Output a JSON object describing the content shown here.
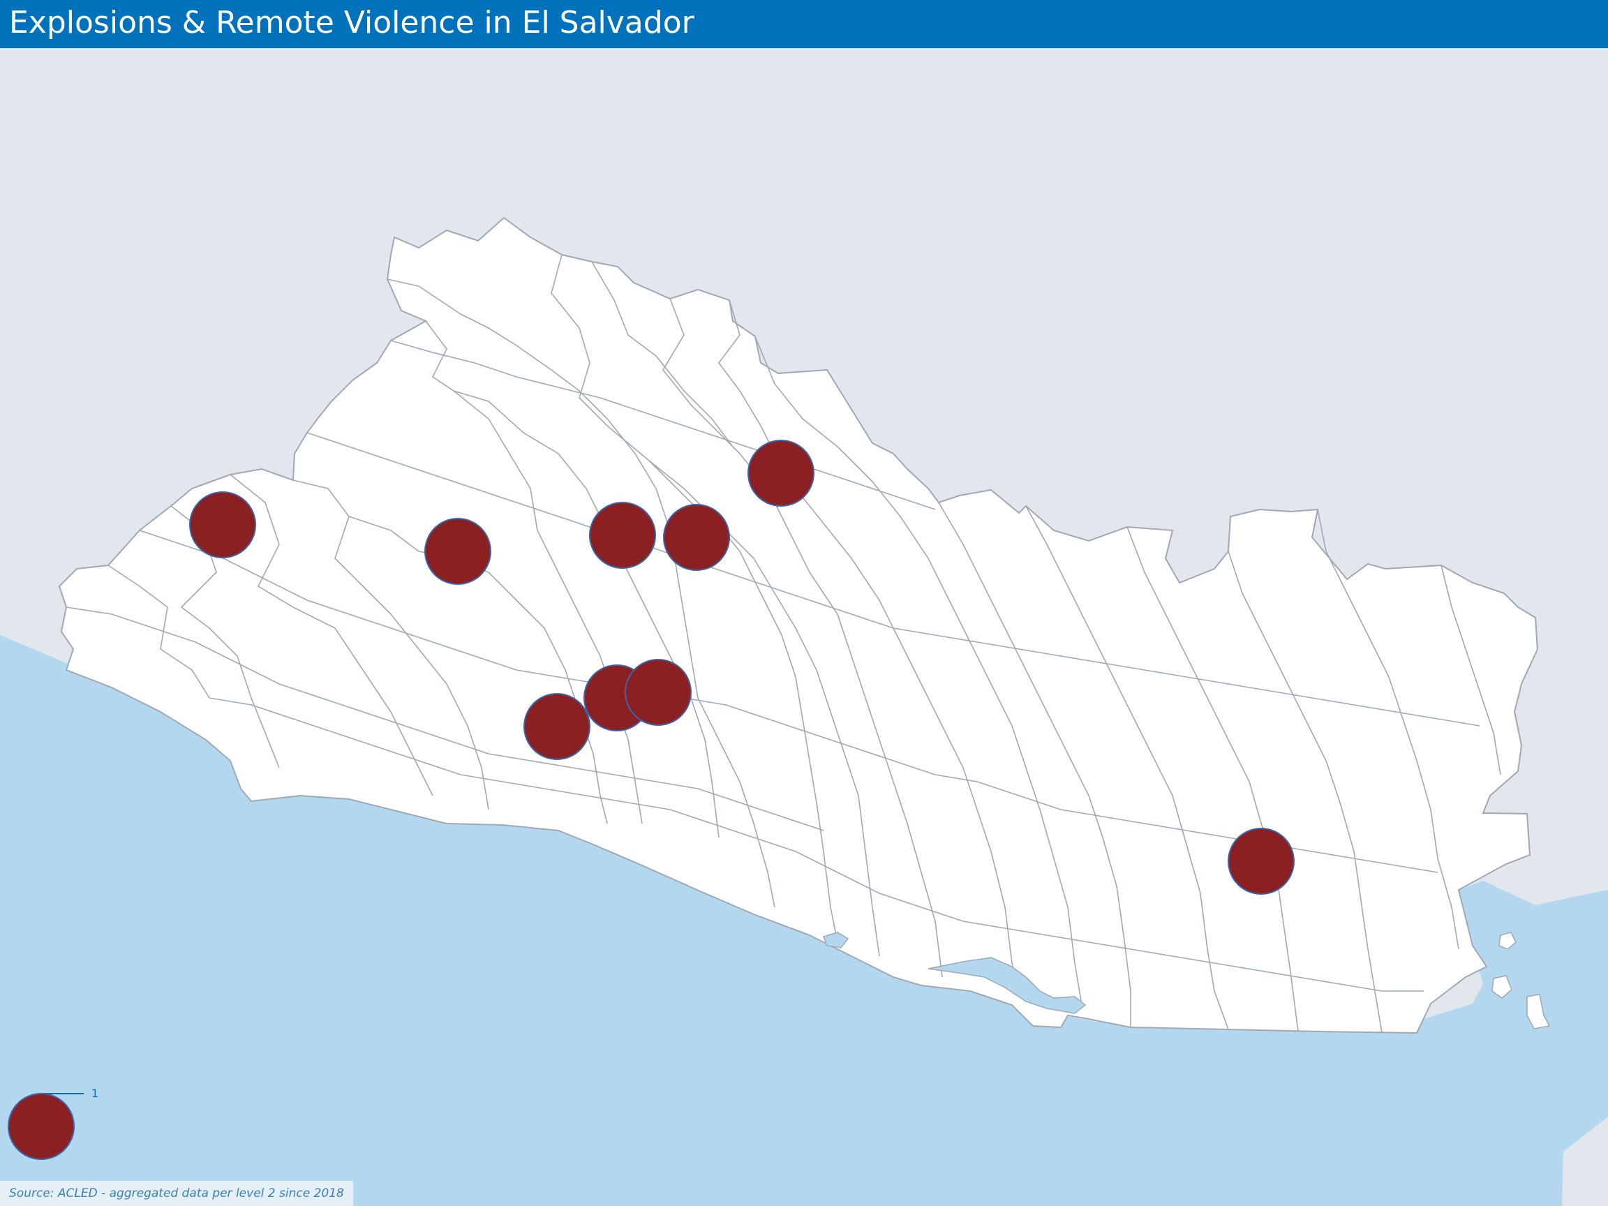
{
  "title": "Explosions & Remote Violence in El Salvador",
  "source": "Source: ACLED - aggregated data per level 2 since 2018",
  "legend": {
    "value_label": "1",
    "value": 1
  },
  "colors": {
    "title_bar": "#0072bc",
    "land": "#ffffff",
    "neighbors": "#e1e7ec",
    "sea": "#b3d7ef",
    "borders": "#a0a8b2",
    "marker_fill": "#8b2022",
    "marker_stroke": "#3b64a8",
    "legend_text": "#0072bc"
  },
  "events": [
    {
      "id": "event-1",
      "count": 1
    },
    {
      "id": "event-2",
      "count": 1
    },
    {
      "id": "event-3",
      "count": 1
    },
    {
      "id": "event-4",
      "count": 1
    },
    {
      "id": "event-5",
      "count": 1
    },
    {
      "id": "event-6",
      "count": 1
    },
    {
      "id": "event-7",
      "count": 1
    },
    {
      "id": "event-8",
      "count": 1
    },
    {
      "id": "event-9",
      "count": 1
    }
  ]
}
